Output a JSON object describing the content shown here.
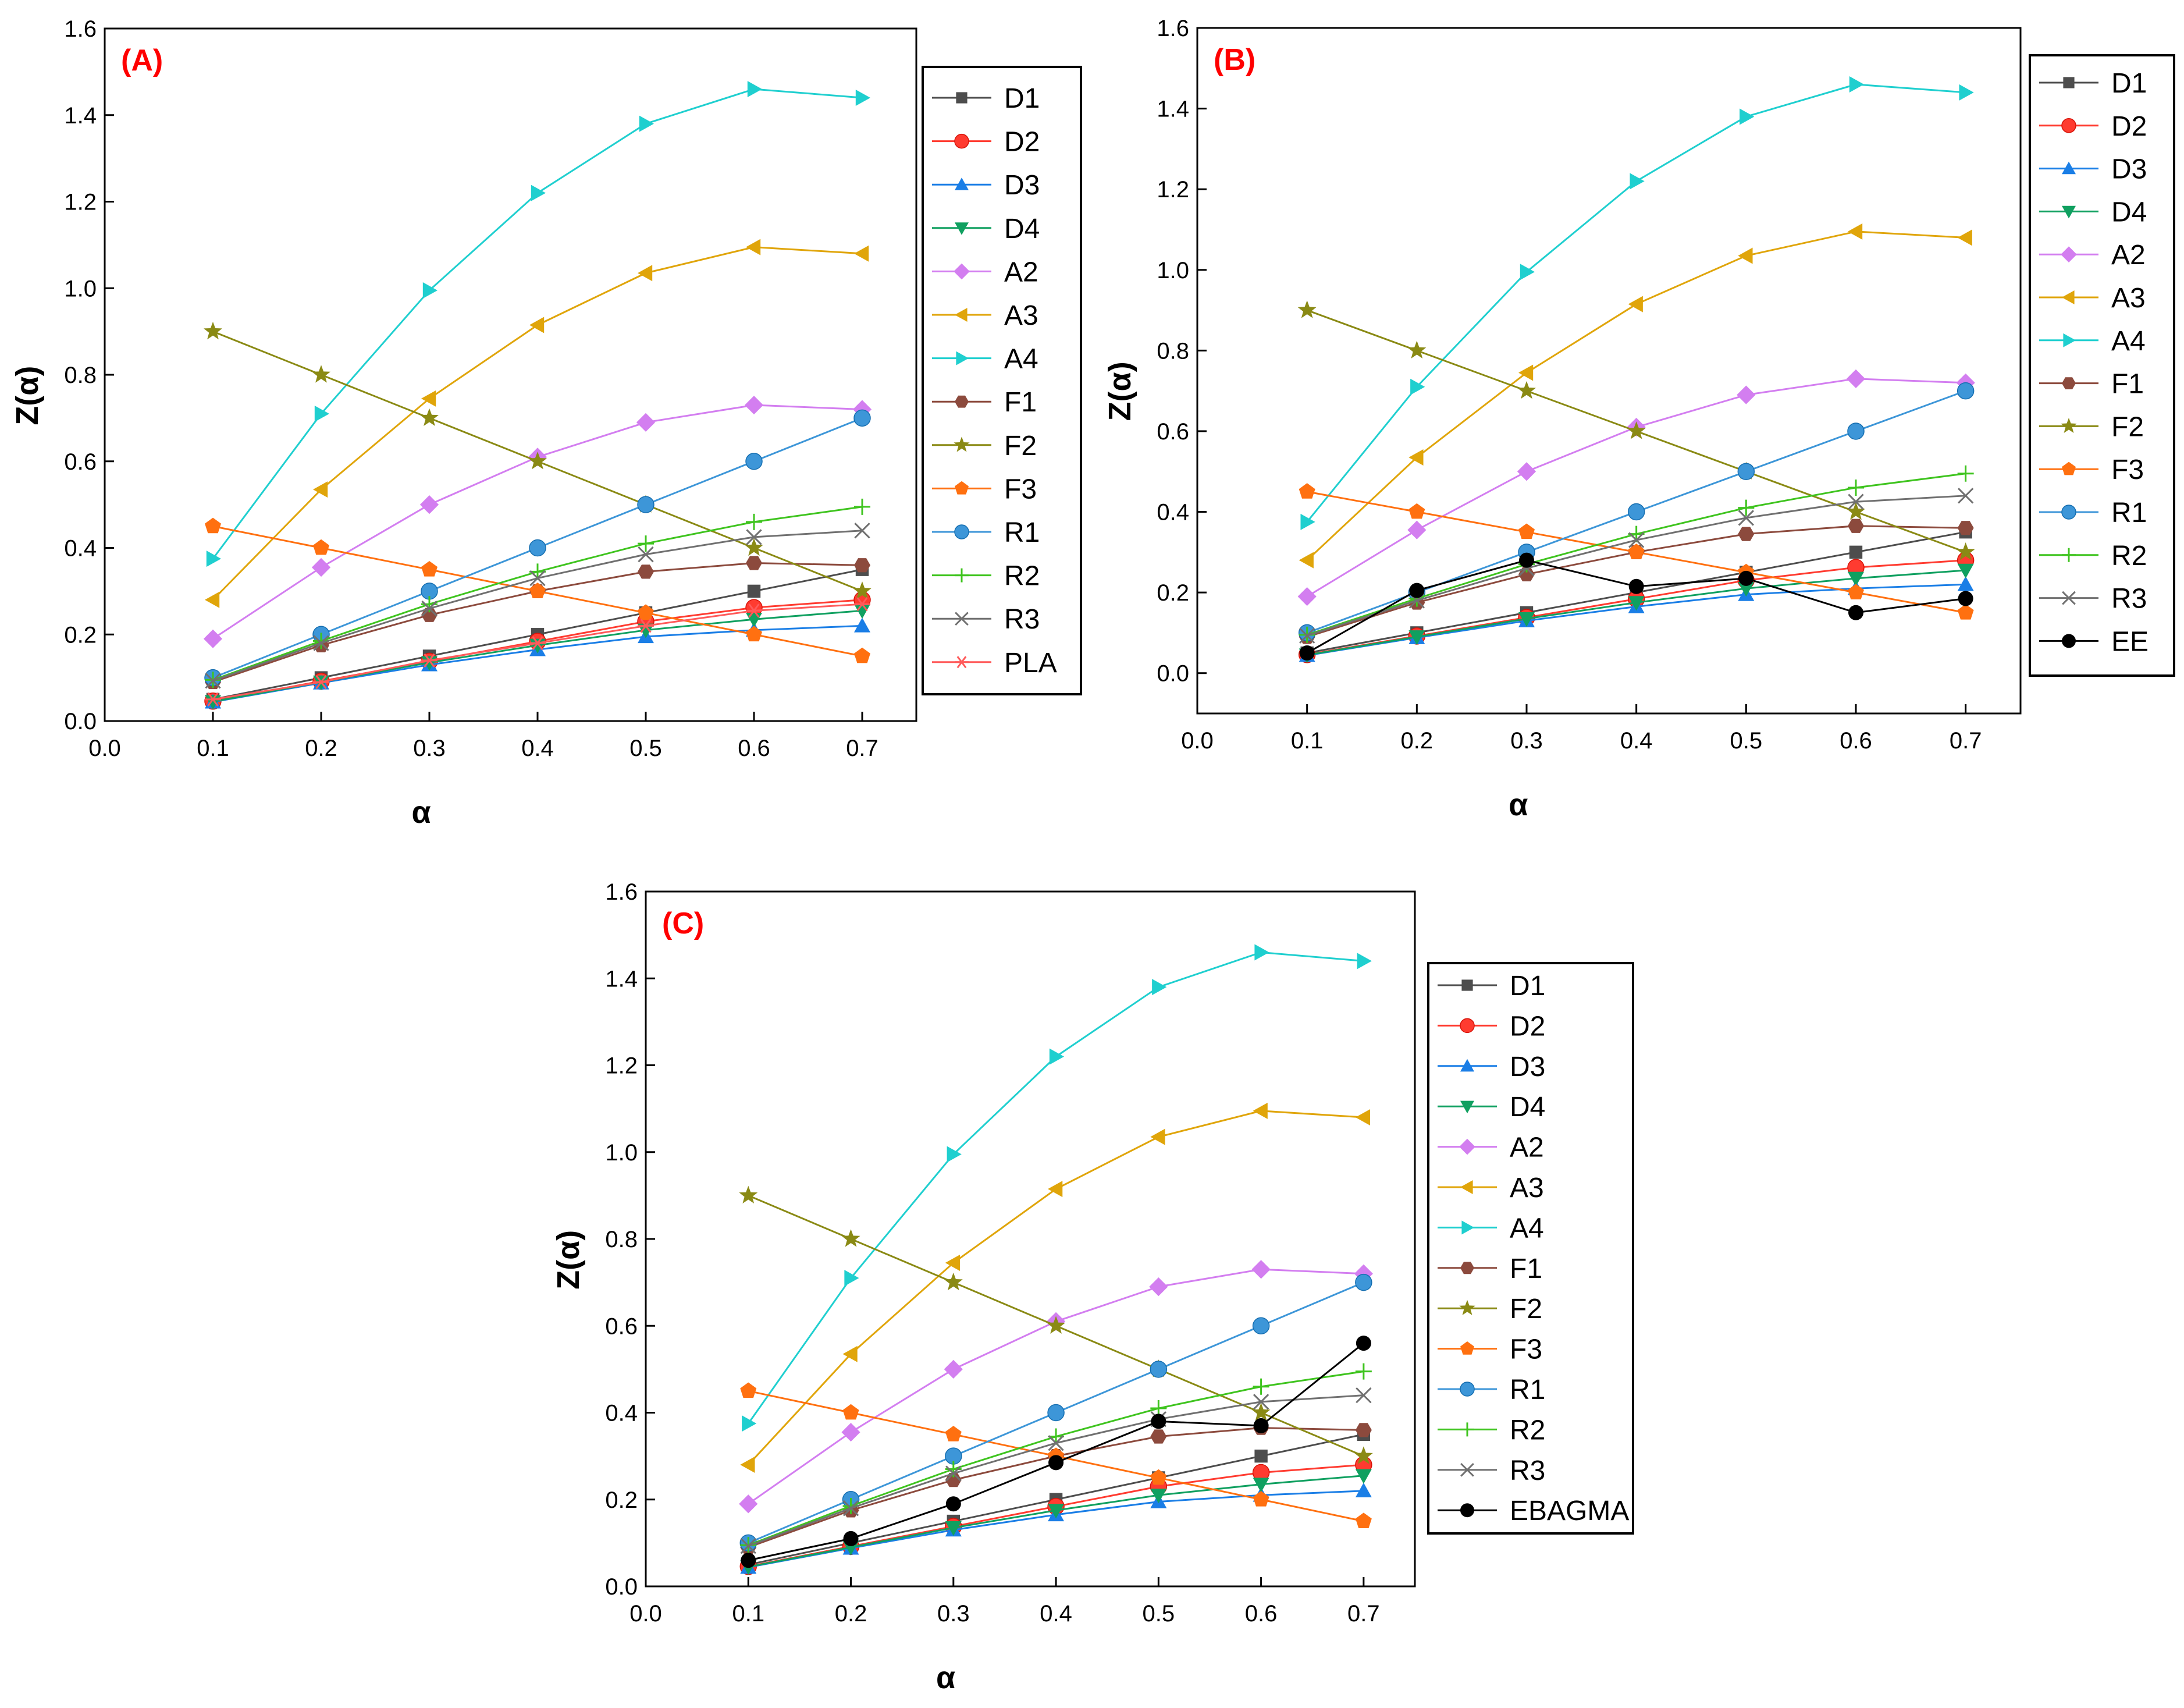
{
  "figure": {
    "panels_shown": [
      "A",
      "B",
      "C"
    ]
  },
  "colors": {
    "D1": "#4d4d4d",
    "D2": "#ff3b30",
    "D3": "#1a7ee6",
    "D4": "#10a060",
    "A2": "#d37ef0",
    "A3": "#e0a50a",
    "A4": "#1fcfcf",
    "F1": "#8c4a3d",
    "F2": "#8a8a14",
    "F3": "#ff7010",
    "R1": "#3d96d8",
    "R2": "#3fc41f",
    "R3": "#707070",
    "PLA": "#ff5a5a",
    "EE": "#000000",
    "EBAGMA": "#000000"
  },
  "chart_data": [
    {
      "type": "line",
      "panel_label": "(A)",
      "xlabel": "α",
      "ylabel": "Z(α)",
      "xlim": [
        0.0,
        0.75
      ],
      "ylim": [
        0.0,
        1.6
      ],
      "xticks": [
        "0.0",
        "0.1",
        "0.2",
        "0.3",
        "0.4",
        "0.5",
        "0.6",
        "0.7"
      ],
      "yticks": [
        "0.0",
        "0.2",
        "0.4",
        "0.6",
        "0.8",
        "1.0",
        "1.2",
        "1.4",
        "1.6"
      ],
      "x": [
        0.1,
        0.2,
        0.3,
        0.4,
        0.5,
        0.6,
        0.7
      ],
      "series": [
        {
          "name": "D1",
          "marker": "square",
          "values": [
            0.05,
            0.1,
            0.15,
            0.2,
            0.25,
            0.3,
            0.35
          ]
        },
        {
          "name": "D2",
          "marker": "circle",
          "values": [
            0.046,
            0.092,
            0.138,
            0.184,
            0.23,
            0.262,
            0.28
          ]
        },
        {
          "name": "D3",
          "marker": "triangle-up",
          "values": [
            0.044,
            0.088,
            0.13,
            0.165,
            0.195,
            0.21,
            0.22
          ]
        },
        {
          "name": "D4",
          "marker": "triangle-down",
          "values": [
            0.045,
            0.09,
            0.135,
            0.175,
            0.21,
            0.235,
            0.255
          ]
        },
        {
          "name": "A2",
          "marker": "diamond",
          "values": [
            0.19,
            0.355,
            0.5,
            0.61,
            0.69,
            0.73,
            0.72
          ]
        },
        {
          "name": "A3",
          "marker": "triangle-left",
          "values": [
            0.28,
            0.535,
            0.745,
            0.915,
            1.035,
            1.095,
            1.08
          ]
        },
        {
          "name": "A4",
          "marker": "triangle-right",
          "values": [
            0.375,
            0.71,
            0.995,
            1.22,
            1.38,
            1.46,
            1.44
          ]
        },
        {
          "name": "F1",
          "marker": "hexagon",
          "values": [
            0.09,
            0.175,
            0.245,
            0.3,
            0.345,
            0.365,
            0.36
          ]
        },
        {
          "name": "F2",
          "marker": "star",
          "values": [
            0.9,
            0.8,
            0.7,
            0.6,
            0.5,
            0.4,
            0.3
          ]
        },
        {
          "name": "F3",
          "marker": "pentagon",
          "values": [
            0.45,
            0.4,
            0.35,
            0.3,
            0.25,
            0.2,
            0.15
          ]
        },
        {
          "name": "R1",
          "marker": "circle",
          "values": [
            0.1,
            0.2,
            0.3,
            0.4,
            0.5,
            0.6,
            0.7
          ]
        },
        {
          "name": "R2",
          "marker": "plus",
          "values": [
            0.095,
            0.185,
            0.27,
            0.345,
            0.41,
            0.46,
            0.495
          ]
        },
        {
          "name": "R3",
          "marker": "cross",
          "values": [
            0.093,
            0.18,
            0.26,
            0.33,
            0.385,
            0.425,
            0.44
          ]
        },
        {
          "name": "PLA",
          "marker": "asterisk",
          "values": [
            0.05,
            0.09,
            0.14,
            0.18,
            0.22,
            0.255,
            0.27
          ]
        }
      ]
    },
    {
      "type": "line",
      "panel_label": "(B)",
      "xlabel": "α",
      "ylabel": "Z(α)",
      "xlim": [
        0.0,
        0.75
      ],
      "ylim": [
        -0.1,
        1.6
      ],
      "xticks": [
        "0.0",
        "0.1",
        "0.2",
        "0.3",
        "0.4",
        "0.5",
        "0.6",
        "0.7"
      ],
      "yticks": [
        "0.0",
        "0.2",
        "0.4",
        "0.6",
        "0.8",
        "1.0",
        "1.2",
        "1.4",
        "1.6"
      ],
      "x": [
        0.1,
        0.2,
        0.3,
        0.4,
        0.5,
        0.6,
        0.7
      ],
      "series": [
        {
          "name": "D1",
          "marker": "square",
          "values": [
            0.05,
            0.1,
            0.15,
            0.2,
            0.25,
            0.3,
            0.35
          ]
        },
        {
          "name": "D2",
          "marker": "circle",
          "values": [
            0.046,
            0.092,
            0.138,
            0.184,
            0.23,
            0.262,
            0.28
          ]
        },
        {
          "name": "D3",
          "marker": "triangle-up",
          "values": [
            0.044,
            0.088,
            0.13,
            0.165,
            0.195,
            0.21,
            0.22
          ]
        },
        {
          "name": "D4",
          "marker": "triangle-down",
          "values": [
            0.045,
            0.09,
            0.135,
            0.175,
            0.21,
            0.235,
            0.255
          ]
        },
        {
          "name": "A2",
          "marker": "diamond",
          "values": [
            0.19,
            0.355,
            0.5,
            0.61,
            0.69,
            0.73,
            0.72
          ]
        },
        {
          "name": "A3",
          "marker": "triangle-left",
          "values": [
            0.28,
            0.535,
            0.745,
            0.915,
            1.035,
            1.095,
            1.08
          ]
        },
        {
          "name": "A4",
          "marker": "triangle-right",
          "values": [
            0.375,
            0.71,
            0.995,
            1.22,
            1.38,
            1.46,
            1.44
          ]
        },
        {
          "name": "F1",
          "marker": "hexagon",
          "values": [
            0.09,
            0.175,
            0.245,
            0.3,
            0.345,
            0.365,
            0.36
          ]
        },
        {
          "name": "F2",
          "marker": "star",
          "values": [
            0.9,
            0.8,
            0.7,
            0.6,
            0.5,
            0.4,
            0.3
          ]
        },
        {
          "name": "F3",
          "marker": "pentagon",
          "values": [
            0.45,
            0.4,
            0.35,
            0.3,
            0.25,
            0.2,
            0.15
          ]
        },
        {
          "name": "R1",
          "marker": "circle",
          "values": [
            0.1,
            0.2,
            0.3,
            0.4,
            0.5,
            0.6,
            0.7
          ]
        },
        {
          "name": "R2",
          "marker": "plus",
          "values": [
            0.095,
            0.185,
            0.27,
            0.345,
            0.41,
            0.46,
            0.495
          ]
        },
        {
          "name": "R3",
          "marker": "cross",
          "values": [
            0.093,
            0.18,
            0.26,
            0.33,
            0.385,
            0.425,
            0.44
          ]
        },
        {
          "name": "EE",
          "marker": "dot",
          "values": [
            0.05,
            0.205,
            0.28,
            0.215,
            0.235,
            0.15,
            0.185
          ]
        }
      ]
    },
    {
      "type": "line",
      "panel_label": "(C)",
      "xlabel": "α",
      "ylabel": "Z(α)",
      "xlim": [
        0.0,
        0.75
      ],
      "ylim": [
        0.0,
        1.6
      ],
      "xticks": [
        "0.0",
        "0.1",
        "0.2",
        "0.3",
        "0.4",
        "0.5",
        "0.6",
        "0.7"
      ],
      "yticks": [
        "0.0",
        "0.2",
        "0.4",
        "0.6",
        "0.8",
        "1.0",
        "1.2",
        "1.4",
        "1.6"
      ],
      "x": [
        0.1,
        0.2,
        0.3,
        0.4,
        0.5,
        0.6,
        0.7
      ],
      "series": [
        {
          "name": "D1",
          "marker": "square",
          "values": [
            0.05,
            0.1,
            0.15,
            0.2,
            0.25,
            0.3,
            0.35
          ]
        },
        {
          "name": "D2",
          "marker": "circle",
          "values": [
            0.046,
            0.092,
            0.138,
            0.184,
            0.23,
            0.262,
            0.28
          ]
        },
        {
          "name": "D3",
          "marker": "triangle-up",
          "values": [
            0.044,
            0.088,
            0.13,
            0.165,
            0.195,
            0.21,
            0.22
          ]
        },
        {
          "name": "D4",
          "marker": "triangle-down",
          "values": [
            0.045,
            0.09,
            0.135,
            0.175,
            0.21,
            0.235,
            0.255
          ]
        },
        {
          "name": "A2",
          "marker": "diamond",
          "values": [
            0.19,
            0.355,
            0.5,
            0.61,
            0.69,
            0.73,
            0.72
          ]
        },
        {
          "name": "A3",
          "marker": "triangle-left",
          "values": [
            0.28,
            0.535,
            0.745,
            0.915,
            1.035,
            1.095,
            1.08
          ]
        },
        {
          "name": "A4",
          "marker": "triangle-right",
          "values": [
            0.375,
            0.71,
            0.995,
            1.22,
            1.38,
            1.46,
            1.44
          ]
        },
        {
          "name": "F1",
          "marker": "hexagon",
          "values": [
            0.09,
            0.175,
            0.245,
            0.3,
            0.345,
            0.365,
            0.36
          ]
        },
        {
          "name": "F2",
          "marker": "star",
          "values": [
            0.9,
            0.8,
            0.7,
            0.6,
            0.5,
            0.4,
            0.3
          ]
        },
        {
          "name": "F3",
          "marker": "pentagon",
          "values": [
            0.45,
            0.4,
            0.35,
            0.3,
            0.25,
            0.2,
            0.15
          ]
        },
        {
          "name": "R1",
          "marker": "circle",
          "values": [
            0.1,
            0.2,
            0.3,
            0.4,
            0.5,
            0.6,
            0.7
          ]
        },
        {
          "name": "R2",
          "marker": "plus",
          "values": [
            0.095,
            0.185,
            0.27,
            0.345,
            0.41,
            0.46,
            0.495
          ]
        },
        {
          "name": "R3",
          "marker": "cross",
          "values": [
            0.093,
            0.18,
            0.26,
            0.33,
            0.385,
            0.425,
            0.44
          ]
        },
        {
          "name": "EBAGMA",
          "marker": "dot",
          "values": [
            0.06,
            0.11,
            0.19,
            0.285,
            0.38,
            0.37,
            0.56
          ]
        }
      ]
    }
  ]
}
